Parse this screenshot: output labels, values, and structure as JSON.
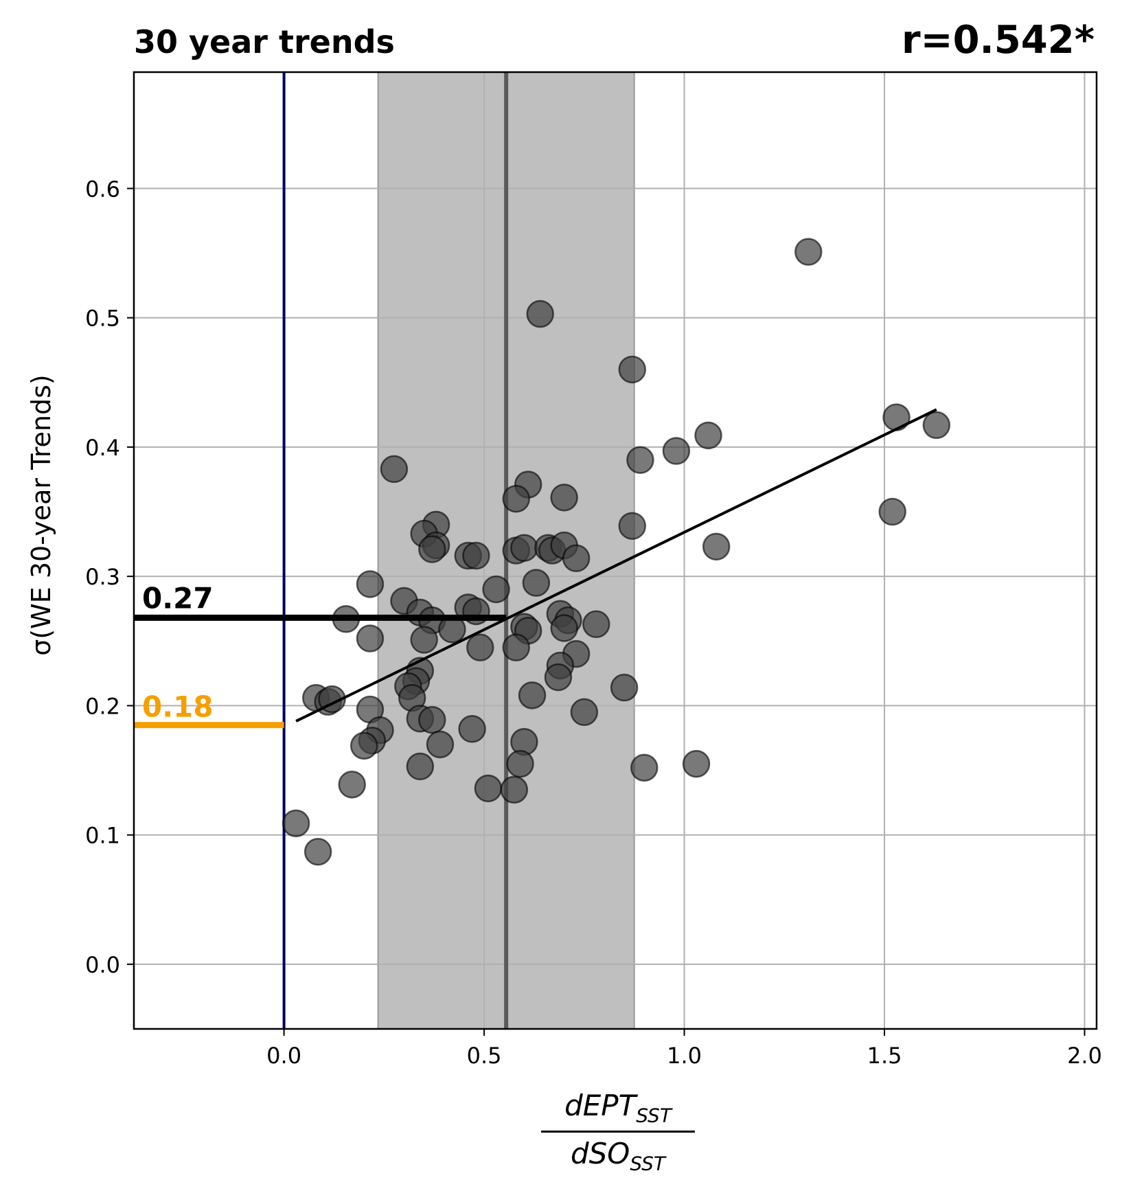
{
  "title": "30 year trends",
  "corr_label": "r=0.542*",
  "ylabel": "σ(WE 30-year Trends)",
  "xlabel": {
    "num_main": "dEPT",
    "num_sub": "SST",
    "den_main": "dSO",
    "den_sub": "SST"
  },
  "colors": {
    "points": "#404040",
    "band": "#bfbfbf",
    "mean_line": "#5a5a5a",
    "zero_line": "#000066",
    "orange": "#f5a000",
    "grid": "#b0b0b0"
  },
  "chart_data": {
    "type": "scatter",
    "xlim": [
      -0.375,
      2.03
    ],
    "ylim": [
      -0.05,
      0.69
    ],
    "xticks": [
      0.0,
      0.5,
      1.0,
      1.5,
      2.0
    ],
    "xtick_labels": [
      "0.0",
      "0.5",
      "1.0",
      "1.5",
      "2.0"
    ],
    "yticks": [
      0.0,
      0.1,
      0.2,
      0.3,
      0.4,
      0.5,
      0.6
    ],
    "ytick_labels": [
      "0.0",
      "0.1",
      "0.2",
      "0.3",
      "0.4",
      "0.5",
      "0.6"
    ],
    "grid": true,
    "points": [
      [
        1.31,
        0.551
      ],
      [
        0.64,
        0.503
      ],
      [
        0.87,
        0.46
      ],
      [
        1.53,
        0.423
      ],
      [
        1.63,
        0.417
      ],
      [
        1.06,
        0.409
      ],
      [
        0.98,
        0.397
      ],
      [
        0.89,
        0.39
      ],
      [
        0.275,
        0.383
      ],
      [
        0.61,
        0.371
      ],
      [
        0.58,
        0.36
      ],
      [
        0.7,
        0.361
      ],
      [
        1.52,
        0.35
      ],
      [
        0.87,
        0.339
      ],
      [
        0.38,
        0.34
      ],
      [
        0.35,
        0.333
      ],
      [
        0.38,
        0.324
      ],
      [
        0.37,
        0.321
      ],
      [
        0.46,
        0.316
      ],
      [
        0.48,
        0.316
      ],
      [
        0.58,
        0.32
      ],
      [
        0.6,
        0.322
      ],
      [
        0.66,
        0.322
      ],
      [
        0.67,
        0.32
      ],
      [
        0.7,
        0.324
      ],
      [
        0.73,
        0.314
      ],
      [
        1.08,
        0.323
      ],
      [
        0.215,
        0.294
      ],
      [
        0.63,
        0.295
      ],
      [
        0.53,
        0.29
      ],
      [
        0.3,
        0.281
      ],
      [
        0.46,
        0.276
      ],
      [
        0.48,
        0.273
      ],
      [
        0.34,
        0.272
      ],
      [
        0.155,
        0.267
      ],
      [
        0.37,
        0.266
      ],
      [
        0.42,
        0.259
      ],
      [
        0.69,
        0.271
      ],
      [
        0.71,
        0.266
      ],
      [
        0.7,
        0.26
      ],
      [
        0.78,
        0.263
      ],
      [
        0.6,
        0.261
      ],
      [
        0.61,
        0.258
      ],
      [
        0.215,
        0.252
      ],
      [
        0.35,
        0.251
      ],
      [
        0.49,
        0.245
      ],
      [
        0.58,
        0.245
      ],
      [
        0.73,
        0.24
      ],
      [
        0.69,
        0.231
      ],
      [
        0.685,
        0.222
      ],
      [
        0.34,
        0.227
      ],
      [
        0.33,
        0.219
      ],
      [
        0.31,
        0.215
      ],
      [
        0.32,
        0.206
      ],
      [
        0.08,
        0.206
      ],
      [
        0.11,
        0.203
      ],
      [
        0.12,
        0.205
      ],
      [
        0.62,
        0.208
      ],
      [
        0.85,
        0.214
      ],
      [
        0.215,
        0.197
      ],
      [
        0.75,
        0.195
      ],
      [
        0.47,
        0.182
      ],
      [
        0.34,
        0.19
      ],
      [
        0.37,
        0.189
      ],
      [
        0.24,
        0.181
      ],
      [
        0.22,
        0.173
      ],
      [
        0.2,
        0.169
      ],
      [
        0.39,
        0.17
      ],
      [
        0.6,
        0.172
      ],
      [
        0.59,
        0.155
      ],
      [
        0.34,
        0.153
      ],
      [
        0.9,
        0.152
      ],
      [
        1.03,
        0.155
      ],
      [
        0.17,
        0.139
      ],
      [
        0.51,
        0.136
      ],
      [
        0.575,
        0.135
      ],
      [
        0.03,
        0.109
      ],
      [
        0.085,
        0.087
      ]
    ],
    "fit_line": [
      [
        0.03,
        0.188
      ],
      [
        1.63,
        0.429
      ]
    ],
    "band": [
      0.235,
      0.875
    ],
    "mean_x": 0.555,
    "zero_line_x": 0.0,
    "black_level": 0.268,
    "black_level_label": "0.27",
    "orange_level": 0.185,
    "orange_level_label": "0.18"
  }
}
